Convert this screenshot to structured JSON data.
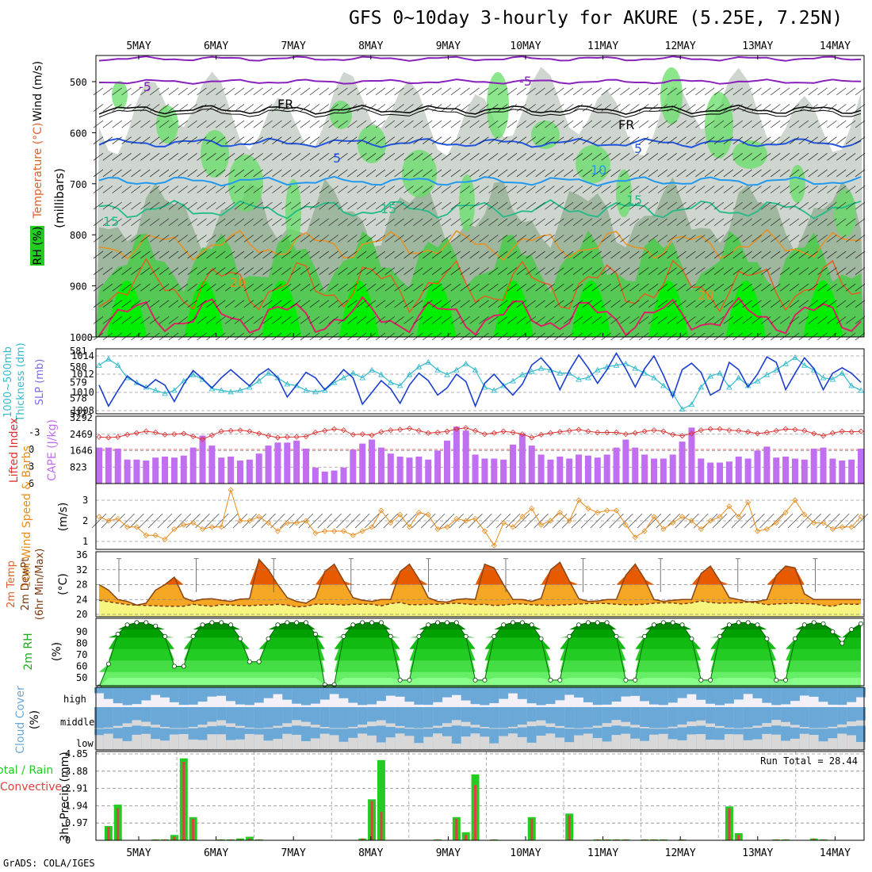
{
  "title": "GFS 0~10day 3-hourly for AKURE (5.25E, 7.25N)",
  "footer": "GrADS: COLA/IGES",
  "dates": [
    "5MAY",
    "6MAY",
    "7MAY",
    "8MAY",
    "9MAY",
    "10MAY",
    "11MAY",
    "12MAY",
    "13MAY",
    "14MAY"
  ],
  "colors": {
    "rh_dark": "#00ee00",
    "rh_mid": "#66cc66",
    "rh_light": "#c8c8c8",
    "slp": "#1a3fcf",
    "thickness": "#33bbcc",
    "lifted": "#dd3333",
    "cape": "#bf6fef",
    "wind10": "#e88a1a",
    "temp_hot": "#e85a00",
    "temp_warm": "#f5a623",
    "dew_fill": "#f5f580",
    "rh2m": "#00aa00",
    "cloud": "#6aa8d8",
    "cloud_light": "#d8d8d8",
    "precip_total": "#22cc22",
    "precip_conv": "#e04040"
  },
  "panel_labels": {
    "upper": [
      "Wind (m/s)",
      "Temperature (°C)",
      "RH (%)",
      "(millibars)"
    ],
    "slp": [
      "SLP (mb)",
      "Thickness (dm)",
      "1000~500mb"
    ],
    "cape": [
      "CAPE (J/kg)",
      "Lifted Index"
    ],
    "wind10": [
      "10m Wind Speed & Barbs",
      "(m/s)"
    ],
    "temp2m": [
      "2m Temp",
      "2m DewPt",
      "(6hr Min/Max)",
      "(°C)"
    ],
    "rh2m": [
      "2m RH",
      "(%)"
    ],
    "cloud": [
      "Cloud Cover",
      "(%)"
    ],
    "precip": [
      "Total / Rain",
      "Convective",
      "3hr Precip (mm)"
    ]
  },
  "upper_air": {
    "pressure_ticks": [
      "500",
      "600",
      "700",
      "800",
      "900",
      "1000"
    ],
    "contour_labels": [
      {
        "text": "-5",
        "color": "#8822bb"
      },
      {
        "text": "-5",
        "color": "#8822bb"
      },
      {
        "text": "FR",
        "color": "#000000"
      },
      {
        "text": "FR",
        "color": "#000000"
      },
      {
        "text": "5",
        "color": "#2255dd"
      },
      {
        "text": "5",
        "color": "#2255dd"
      },
      {
        "text": "10",
        "color": "#2299ee"
      },
      {
        "text": "15",
        "color": "#22bb88"
      },
      {
        "text": "15",
        "color": "#22bb88"
      },
      {
        "text": "15",
        "color": "#22bb88"
      },
      {
        "text": "20",
        "color": "#e89020"
      },
      {
        "text": "20",
        "color": "#e89020"
      }
    ]
  },
  "chart_data": [
    {
      "type": "line",
      "name": "SLP and 1000-500mb thickness",
      "slp_axis": [
        "1008",
        "1010",
        "1012",
        "1014"
      ],
      "thickness_axis": [
        "577",
        "578",
        "579",
        "580",
        "581"
      ],
      "series": [
        {
          "name": "SLP (mb)",
          "values": [
            1010.8,
            1008.5,
            1010.2,
            1011.8,
            1011,
            1010.5,
            1011.4,
            1010.8,
            1009,
            1010.9,
            1012.4,
            1011.5,
            1010.5,
            1011.6,
            1012.5,
            1011.6,
            1010.7,
            1011.9,
            1012.6,
            1011.6,
            1009.5,
            1010.8,
            1012.2,
            1011.6,
            1010.3,
            1011.3,
            1012.5,
            1011.6,
            1008.7,
            1010,
            1011.3,
            1010.4,
            1008.8,
            1010.8,
            1012.1,
            1011.3,
            1009.7,
            1010.5,
            1012,
            1011.2,
            1008.5,
            1011,
            1012,
            1010.8,
            1009.7,
            1010.9,
            1013,
            1013.8,
            1012.6,
            1010.3,
            1012.4,
            1014.1,
            1012.7,
            1011,
            1012.5,
            1014.3,
            1012.6,
            1010.6,
            1012.6,
            1014,
            1011.9,
            1009.5,
            1012.5,
            1013.2,
            1012.2,
            1009.7,
            1010.3,
            1013.3,
            1012.5,
            1010.6,
            1012,
            1013.9,
            1013.3,
            1010.3,
            1012.1,
            1013.8,
            1012.6,
            1010.3,
            1012.1,
            1012.7,
            1012.1,
            1011.1
          ]
        },
        {
          "name": "Thickness (dm)",
          "values": [
            580.1,
            580.5,
            580.1,
            579.3,
            579,
            578.7,
            578.5,
            578.3,
            578.5,
            579.1,
            579.5,
            579.2,
            578.6,
            578.5,
            578.4,
            578.5,
            578.7,
            579.1,
            579.6,
            579.3,
            578.9,
            578.8,
            578.5,
            578.4,
            578.5,
            579,
            579.3,
            579.6,
            579.3,
            579.8,
            579.5,
            579,
            578.8,
            579.5,
            580,
            580.3,
            579.8,
            579.5,
            579.8,
            580.2,
            579.8,
            578.7,
            578.5,
            578.8,
            579.1,
            579.5,
            579.7,
            579.9,
            579.8,
            579.6,
            579.6,
            579.2,
            579.3,
            579.8,
            580,
            580.1,
            580.2,
            579.9,
            579.6,
            579.3,
            578.8,
            578.3,
            577.3,
            577.6,
            578.7,
            579.4,
            579.6,
            578.7,
            579.3,
            578.8,
            579.1,
            579.5,
            579.8,
            580.2,
            580.6,
            580.1,
            579.8,
            579.3,
            579.2,
            579.6,
            578.8,
            578.5
          ]
        }
      ]
    },
    {
      "type": "bar",
      "name": "CAPE and Lifted Index",
      "cape_axis": [
        "823",
        "1646",
        "2469",
        "3292"
      ],
      "lifted_axis": [
        "-3",
        "0",
        "3",
        "6"
      ],
      "series": [
        {
          "name": "CAPE (J/kg)",
          "values": [
            1800,
            1800,
            1750,
            1200,
            1200,
            1150,
            1300,
            1350,
            1300,
            1400,
            1800,
            2400,
            1900,
            1300,
            1350,
            1150,
            1200,
            1500,
            1900,
            2050,
            2050,
            2150,
            1750,
            800,
            600,
            650,
            800,
            1700,
            2000,
            2200,
            1800,
            1500,
            1350,
            1300,
            1350,
            1200,
            1650,
            2150,
            2850,
            2650,
            1450,
            1250,
            1250,
            1200,
            1950,
            2500,
            1900,
            1450,
            1200,
            1350,
            1250,
            1450,
            1400,
            1300,
            1450,
            1800,
            2200,
            1800,
            1450,
            1250,
            1250,
            1450,
            2100,
            2800,
            1250,
            1050,
            1050,
            1100,
            1350,
            1250,
            1650,
            1850,
            1300,
            1350,
            1250,
            1200,
            1750,
            1800,
            1250,
            1150,
            1200,
            1750
          ]
        },
        {
          "name": "Lifted Index",
          "values": [
            -2.2,
            -2.1,
            -2.2,
            -2.6,
            -2.9,
            -3.2,
            -3.0,
            -2.6,
            -2.7,
            -2.8,
            -2.3,
            -1.8,
            -2.5,
            -3.2,
            -3.3,
            -3.4,
            -3.2,
            -2.8,
            -2.4,
            -2.1,
            -2.2,
            -2.2,
            -2.3,
            -3.0,
            -3.3,
            -3.6,
            -3.4,
            -2.6,
            -2.7,
            -2.5,
            -3.1,
            -3.4,
            -3.5,
            -3.7,
            -3.3,
            -2.9,
            -3.0,
            -3.2,
            -3.6,
            -3.8,
            -3.3,
            -2.7,
            -2.9,
            -3.2,
            -3.0,
            -2.7,
            -2.1,
            -2.6,
            -2.9,
            -3.1,
            -3.3,
            -3.5,
            -3.2,
            -3.0,
            -3.0,
            -3.0,
            -2.7,
            -2.9,
            -3.2,
            -3.4,
            -3.2,
            -2.6,
            -2.4,
            -2.8,
            -3.4,
            -3.6,
            -3.6,
            -3.4,
            -3.3,
            -3.1,
            -2.8,
            -3.0,
            -3.3,
            -3.6,
            -3.5,
            -3.3,
            -2.8,
            -2.4,
            -2.9,
            -3.2,
            -3.1,
            -3.2
          ]
        }
      ]
    },
    {
      "type": "line",
      "name": "10m Wind Speed",
      "axis": [
        "1",
        "2",
        "3"
      ],
      "series": [
        {
          "name": "10m Wind Speed (m/s)",
          "values": [
            2.2,
            2.0,
            2.1,
            1.7,
            1.7,
            1.3,
            1.3,
            1.1,
            1.6,
            1.8,
            1.9,
            1.6,
            1.7,
            1.7,
            3.5,
            2.0,
            2.0,
            2.2,
            1.9,
            1.5,
            1.9,
            1.9,
            2.0,
            1.4,
            1.5,
            1.5,
            1.5,
            1.3,
            1.5,
            1.7,
            2.5,
            1.9,
            2.3,
            1.7,
            2.4,
            2.3,
            1.6,
            1.7,
            2.1,
            2.0,
            2.1,
            1.5,
            0.8,
            1.9,
            1.7,
            2.2,
            2.6,
            1.8,
            2.0,
            2.4,
            2.0,
            3.0,
            2.6,
            2.4,
            2.5,
            2.5,
            1.8,
            1.2,
            1.5,
            2.2,
            1.6,
            1.9,
            2.2,
            2.0,
            1.6,
            2.0,
            2.2,
            2.7,
            2.2,
            2.9,
            1.5,
            1.6,
            1.9,
            2.4,
            3.0,
            2.3,
            1.9,
            1.9,
            1.6,
            1.7,
            1.7,
            2.2
          ]
        }
      ]
    },
    {
      "type": "area",
      "name": "2m Temperature and Dew Point",
      "axis": [
        "20",
        "24",
        "28",
        "32",
        "36"
      ],
      "series": [
        {
          "name": "2m Temp (°C)",
          "values": [
            28,
            26.5,
            24,
            23.5,
            22.5,
            23,
            26.5,
            28,
            30,
            24.5,
            23.5,
            24.1,
            24.2,
            23.8,
            23.5,
            24.1,
            24.2,
            34.8,
            32,
            28,
            24.5,
            23.5,
            23,
            24.5,
            31.5,
            33.5,
            29,
            24.5,
            23.8,
            23.5,
            24,
            24,
            31.5,
            33.5,
            29.5,
            24.5,
            23.5,
            23.3,
            24,
            24.2,
            24,
            33.5,
            32.5,
            28,
            24,
            24,
            23.5,
            24.3,
            32,
            34,
            29,
            24.2,
            23.5,
            23.6,
            24,
            24,
            30.5,
            33.5,
            29.5,
            24,
            23.5,
            23.8,
            24,
            24,
            31,
            33,
            29,
            24.5,
            24,
            23.4,
            23.5,
            24,
            30.5,
            33,
            32.5,
            25.5,
            24,
            24,
            24,
            24,
            24,
            24
          ]
        },
        {
          "name": "2m DewPt (°C)",
          "values": [
            23.8,
            23.4,
            23,
            22.6,
            22.5,
            22.4,
            22.3,
            22.2,
            22.2,
            22.2,
            22.7,
            22.4,
            22.2,
            22.6,
            22.5,
            22.4,
            22.3,
            22.5,
            22.5,
            22.7,
            22.5,
            22,
            22.2,
            22.7,
            22.7,
            22.7,
            22.5,
            22.7,
            22.7,
            22.7,
            22.3,
            22.9,
            23.2,
            22.6,
            22.6,
            22.7,
            22.7,
            22.9,
            23,
            22.8,
            22.6,
            22.7,
            22.4,
            22.5,
            22.8,
            22.8,
            22.6,
            22.5,
            22.4,
            22.5,
            22.6,
            22.8,
            22.9,
            23,
            22.9,
            22.7,
            22.6,
            22.6,
            22.7,
            23,
            23.1,
            23.1,
            22.8,
            23.1,
            23.6,
            23.2,
            23.0,
            23.1,
            23.1,
            23.3,
            23.1,
            22.6,
            22.8,
            22.9,
            23,
            22.9,
            22.8,
            22.4,
            22.2,
            22.8,
            22.7,
            22.7
          ]
        }
      ]
    },
    {
      "type": "area",
      "name": "2m Relative Humidity",
      "axis": [
        "50",
        "60",
        "70",
        "80",
        "90"
      ],
      "series": [
        {
          "name": "2m RH (%)",
          "values": [
            42,
            62,
            88,
            96,
            98,
            98,
            95,
            86,
            60,
            60,
            86,
            96,
            98,
            98,
            96,
            84,
            64,
            64,
            84,
            96,
            98,
            98,
            98,
            88,
            44,
            44,
            86,
            96,
            98,
            98,
            98,
            86,
            48,
            48,
            86,
            96,
            98,
            98,
            98,
            86,
            48,
            48,
            86,
            96,
            98,
            98,
            96,
            84,
            48,
            48,
            86,
            96,
            98,
            98,
            98,
            86,
            48,
            48,
            86,
            96,
            98,
            98,
            96,
            84,
            48,
            48,
            86,
            96,
            98,
            98,
            96,
            84,
            48,
            48,
            84,
            96,
            98,
            97,
            90,
            80,
            92,
            97
          ]
        }
      ]
    },
    {
      "type": "bar",
      "name": "3hr Precipitation",
      "axis": [
        "0",
        "0.97",
        "1.94",
        "2.91",
        "3.88",
        "4.85"
      ],
      "run_total": "Run Total = 28.44",
      "series": [
        {
          "name": "Total (mm)",
          "values": [
            0,
            0.8,
            2.0,
            0,
            0,
            0,
            0.05,
            0.05,
            0.3,
            4.6,
            1.3,
            0,
            0,
            0.05,
            0.05,
            0.1,
            0.2,
            0.05,
            0,
            0,
            0,
            0,
            0,
            0,
            0,
            0,
            0,
            0,
            0.1,
            2.3,
            4.5,
            0,
            0,
            0,
            0,
            0,
            0.05,
            0,
            1.3,
            0.45,
            3.7,
            0,
            0.05,
            0,
            0,
            0,
            1.3,
            0,
            0,
            0,
            1.5,
            0,
            0,
            0.05,
            0.05,
            0.05,
            0.05,
            0,
            0.05,
            0.05,
            0.05,
            0,
            0.05,
            0,
            0,
            0,
            0,
            1.9,
            0.4,
            0,
            0,
            0,
            0.05,
            0.05,
            0,
            0,
            0.1,
            0.05,
            0,
            0,
            0,
            0
          ]
        },
        {
          "name": "Convective (mm)",
          "values": [
            0,
            0.75,
            1.8,
            0,
            0.05,
            0,
            0.05,
            0.05,
            0.2,
            4.4,
            1.2,
            0,
            0,
            0.05,
            0.05,
            0.05,
            0.1,
            0.05,
            0,
            0,
            0,
            0,
            0,
            0,
            0,
            0,
            0,
            0,
            0.1,
            2.2,
            1.6,
            0,
            0,
            0,
            0,
            0,
            0.05,
            0,
            1.2,
            0.3,
            3.1,
            0,
            0.05,
            0,
            0,
            0,
            1.2,
            0,
            0,
            0,
            1.4,
            0,
            0,
            0.05,
            0.05,
            0.05,
            0.05,
            0,
            0.05,
            0.05,
            0.05,
            0,
            0.05,
            0,
            0,
            0,
            0,
            1.8,
            0.3,
            0,
            0,
            0,
            0.05,
            0.05,
            0,
            0,
            0.1,
            0.05,
            0,
            0,
            0,
            0
          ]
        }
      ]
    },
    {
      "type": "heatmap",
      "name": "Cloud Cover",
      "levels": [
        "high",
        "middle",
        "low"
      ]
    }
  ]
}
